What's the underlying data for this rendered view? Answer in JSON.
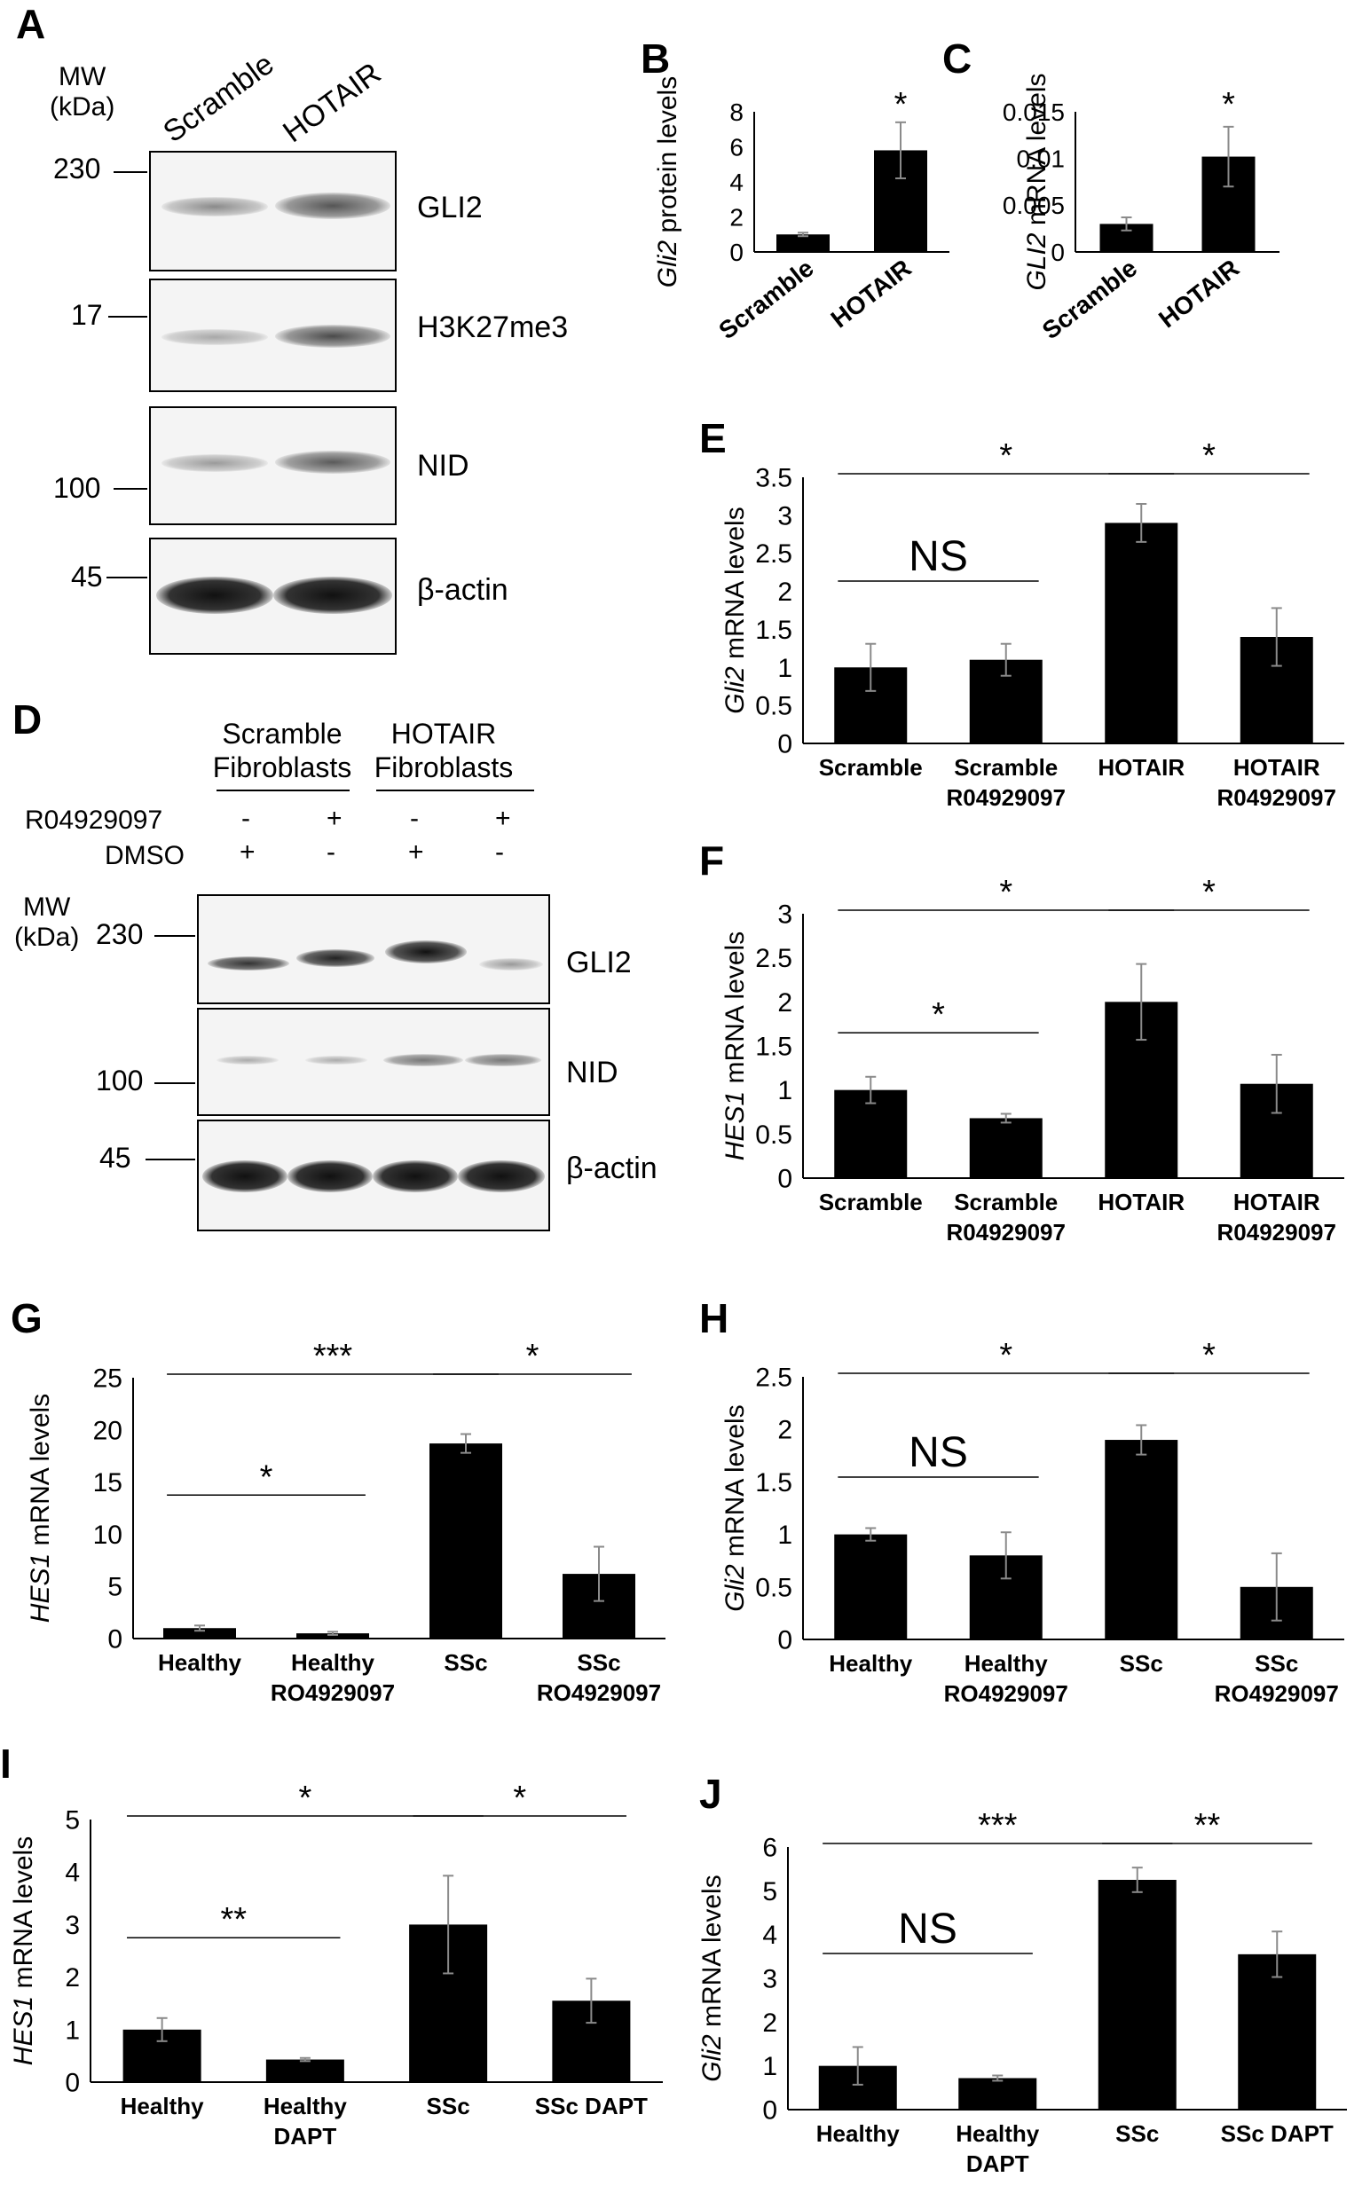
{
  "panels": {
    "A": {
      "label": "A",
      "mw_header": [
        "MW",
        "(kDa)"
      ],
      "lanes": [
        "Scramble",
        "HOTAIR"
      ],
      "blots": [
        {
          "mw": "230",
          "protein": "GLI2"
        },
        {
          "mw": "17",
          "protein": "H3K27me3"
        },
        {
          "mw": "100",
          "protein": "NID"
        },
        {
          "mw": "45",
          "protein": "β-actin"
        }
      ]
    },
    "D": {
      "label": "D",
      "groups": [
        [
          "Scramble",
          "Fibroblasts"
        ],
        [
          "HOTAIR",
          "Fibroblasts"
        ]
      ],
      "treatments": [
        {
          "name": "R04929097",
          "signs": [
            "-",
            "+",
            "-",
            "+"
          ]
        },
        {
          "name": "DMSO",
          "signs": [
            "+",
            "-",
            "+",
            "-"
          ]
        }
      ],
      "mw_header": [
        "MW",
        "(kDa)"
      ],
      "blots": [
        {
          "mw": "230",
          "protein": "GLI2"
        },
        {
          "mw": "100",
          "protein": "NID"
        },
        {
          "mw": "45",
          "protein": "β-actin"
        }
      ]
    }
  },
  "chart_data": [
    {
      "panel": "B",
      "type": "bar",
      "ylabel": "Gli2 protein levels",
      "categories": [
        "Scramble",
        "HOTAIR"
      ],
      "values": [
        1.0,
        5.8
      ],
      "errors": [
        0.1,
        1.6
      ],
      "ylim": [
        0,
        8
      ],
      "yticks": [
        "0",
        "2",
        "4",
        "6",
        "8"
      ],
      "annotations": [
        {
          "text": "*",
          "over": 1
        }
      ]
    },
    {
      "panel": "C",
      "type": "bar",
      "ylabel": "GLI2 mRNA levels",
      "categories": [
        "Scramble",
        "HOTAIR"
      ],
      "values": [
        0.003,
        0.0102
      ],
      "errors": [
        0.0007,
        0.0032
      ],
      "ylim": [
        0,
        0.015
      ],
      "yticks": [
        "0",
        "0.005",
        "0.01",
        "0.015"
      ],
      "annotations": [
        {
          "text": "*",
          "over": 1
        }
      ]
    },
    {
      "panel": "E",
      "type": "bar",
      "ylabel": "Gli2 mRNA levels",
      "categories": [
        [
          "Scramble"
        ],
        [
          "Scramble",
          "R04929097"
        ],
        [
          "HOTAIR"
        ],
        [
          "HOTAIR",
          "R04929097"
        ]
      ],
      "values": [
        1.0,
        1.1,
        2.9,
        1.4
      ],
      "errors": [
        0.31,
        0.21,
        0.25,
        0.38
      ],
      "ylim": [
        0,
        3.5
      ],
      "yticks": [
        "0",
        "0.5",
        "1",
        "1.5",
        "2",
        "2.5",
        "3",
        "3.5"
      ],
      "comparisons": [
        {
          "from": 0,
          "to": 2,
          "text": "*"
        },
        {
          "from": 2,
          "to": 3,
          "text": "*"
        },
        {
          "from": 0,
          "to": 1,
          "text": "NS"
        }
      ]
    },
    {
      "panel": "F",
      "type": "bar",
      "ylabel": "HES1 mRNA levels",
      "categories": [
        [
          "Scramble"
        ],
        [
          "Scramble",
          "R04929097"
        ],
        [
          "HOTAIR"
        ],
        [
          "HOTAIR",
          "R04929097"
        ]
      ],
      "values": [
        1.0,
        0.68,
        2.0,
        1.07
      ],
      "errors": [
        0.15,
        0.05,
        0.43,
        0.33
      ],
      "ylim": [
        0,
        3
      ],
      "yticks": [
        "0",
        "0.5",
        "1",
        "1.5",
        "2",
        "2.5",
        "3"
      ],
      "comparisons": [
        {
          "from": 0,
          "to": 2,
          "text": "*"
        },
        {
          "from": 2,
          "to": 3,
          "text": "*"
        },
        {
          "from": 0,
          "to": 1,
          "text": "*"
        }
      ]
    },
    {
      "panel": "G",
      "type": "bar",
      "ylabel": "HES1 mRNA levels",
      "categories": [
        [
          "Healthy"
        ],
        [
          "Healthy",
          "RO4929097"
        ],
        [
          "SSc"
        ],
        [
          "SSc",
          "RO4929097"
        ]
      ],
      "values": [
        1.0,
        0.5,
        18.7,
        6.2
      ],
      "errors": [
        0.25,
        0.15,
        0.9,
        2.6
      ],
      "ylim": [
        0,
        25
      ],
      "yticks": [
        "0",
        "5",
        "10",
        "15",
        "20",
        "25"
      ],
      "comparisons": [
        {
          "from": 0,
          "to": 2,
          "text": "***"
        },
        {
          "from": 2,
          "to": 3,
          "text": "*"
        },
        {
          "from": 0,
          "to": 1,
          "text": "*"
        }
      ]
    },
    {
      "panel": "H",
      "type": "bar",
      "ylabel": "Gli2 mRNA levels",
      "categories": [
        [
          "Healthy"
        ],
        [
          "Healthy",
          "RO4929097"
        ],
        [
          "SSc"
        ],
        [
          "SSc",
          "RO4929097"
        ]
      ],
      "values": [
        1.0,
        0.8,
        1.9,
        0.5
      ],
      "errors": [
        0.06,
        0.22,
        0.14,
        0.32
      ],
      "ylim": [
        0,
        2.5
      ],
      "yticks": [
        "0",
        "0.5",
        "1",
        "1.5",
        "2",
        "2.5"
      ],
      "comparisons": [
        {
          "from": 0,
          "to": 2,
          "text": "*"
        },
        {
          "from": 2,
          "to": 3,
          "text": "*"
        },
        {
          "from": 0,
          "to": 1,
          "text": "NS"
        }
      ]
    },
    {
      "panel": "I",
      "type": "bar",
      "ylabel": "HES1 mRNA levels",
      "categories": [
        [
          "Healthy"
        ],
        [
          "Healthy",
          "DAPT"
        ],
        [
          "SSc"
        ],
        [
          "SSc DAPT"
        ]
      ],
      "values": [
        1.0,
        0.43,
        3.0,
        1.55
      ],
      "errors": [
        0.22,
        0.03,
        0.93,
        0.42
      ],
      "ylim": [
        0,
        5
      ],
      "yticks": [
        "0",
        "1",
        "2",
        "3",
        "4",
        "5"
      ],
      "comparisons": [
        {
          "from": 0,
          "to": 2,
          "text": "*"
        },
        {
          "from": 2,
          "to": 3,
          "text": "*"
        },
        {
          "from": 0,
          "to": 1,
          "text": "**"
        }
      ]
    },
    {
      "panel": "J",
      "type": "bar",
      "ylabel": "Gli2 mRNA levels",
      "categories": [
        [
          "Healthy"
        ],
        [
          "Healthy",
          "DAPT"
        ],
        [
          "SSc"
        ],
        [
          "SSc DAPT"
        ]
      ],
      "values": [
        1.0,
        0.72,
        5.25,
        3.55
      ],
      "errors": [
        0.43,
        0.06,
        0.28,
        0.52
      ],
      "ylim": [
        0,
        6
      ],
      "yticks": [
        "0",
        "1",
        "2",
        "3",
        "4",
        "5",
        "6"
      ],
      "comparisons": [
        {
          "from": 0,
          "to": 2,
          "text": "***"
        },
        {
          "from": 2,
          "to": 3,
          "text": "**"
        },
        {
          "from": 0,
          "to": 1,
          "text": "NS"
        }
      ]
    }
  ]
}
